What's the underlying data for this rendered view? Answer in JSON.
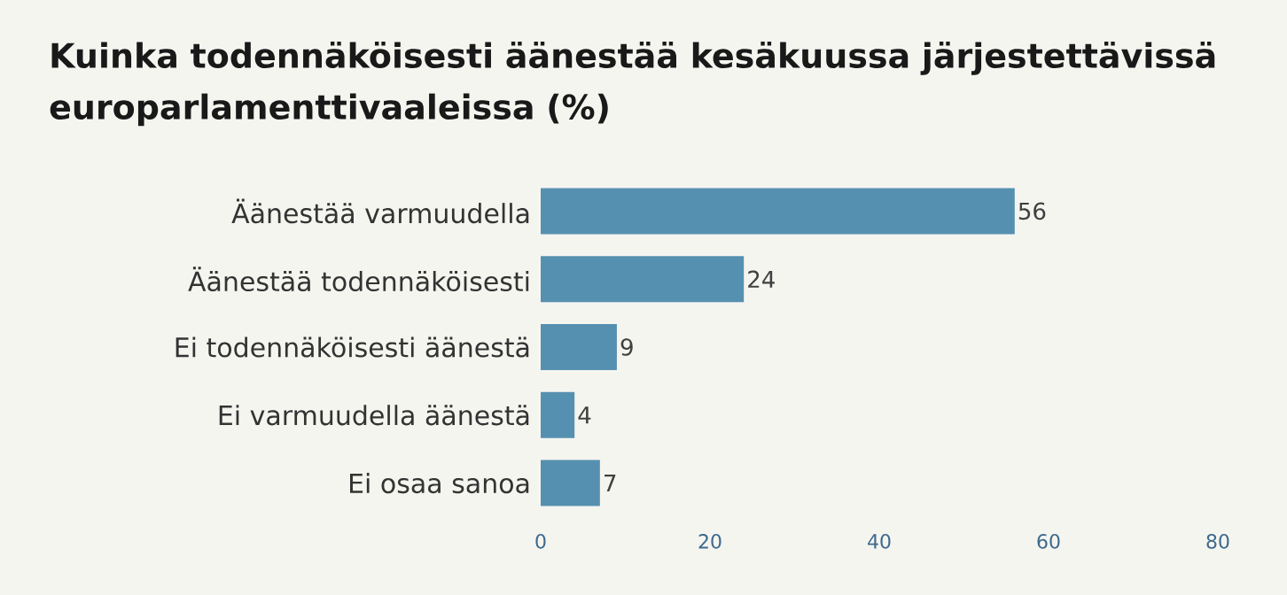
{
  "chart_data": {
    "type": "bar",
    "orientation": "horizontal",
    "title": "Kuinka todennäköisesti äänestää kesäkuussa järjestettävissä europarlamenttivaaleissa (%)",
    "categories": [
      "Äänestää varmuudella",
      "Äänestää todennäköisesti",
      "Ei todennäköisesti äänestä",
      "Ei varmuudella äänestä",
      "Ei osaa sanoa"
    ],
    "values": [
      56,
      24,
      9,
      4,
      7
    ],
    "color": "#5590b0",
    "data_labels": true,
    "xlim": [
      0,
      80
    ],
    "xticks": [
      0,
      20,
      40,
      60,
      80
    ],
    "grid": false
  }
}
